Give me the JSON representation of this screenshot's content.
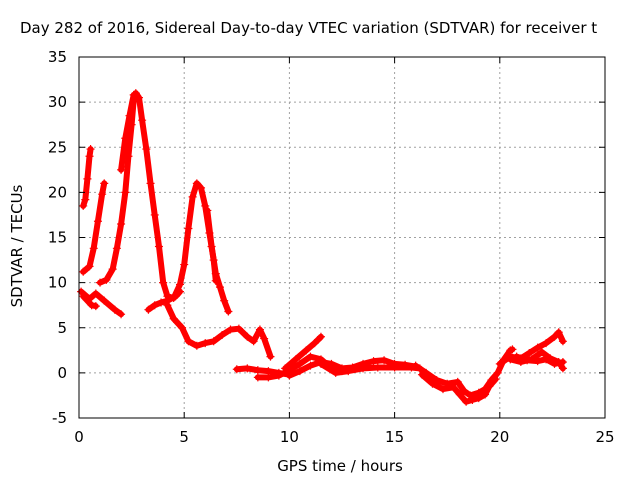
{
  "chart_data": {
    "type": "scatter",
    "title": "Day 282 of 2016, Sidereal Day-to-day VTEC variation (SDTVAR) for receiver t",
    "xlabel": "GPS time / hours",
    "ylabel": "SDTVAR / TECUs",
    "xlim": [
      0,
      25
    ],
    "ylim": [
      -5,
      35
    ],
    "xticks": [
      "0",
      "5",
      "10",
      "15",
      "20",
      "25"
    ],
    "yticks": [
      "-5",
      "0",
      "5",
      "10",
      "15",
      "20",
      "25",
      "30",
      "35"
    ],
    "grid": true,
    "color": "#ff0000",
    "series": [
      {
        "points": [
          [
            0.2,
            18.5
          ],
          [
            0.3,
            19.2
          ],
          [
            0.4,
            21.5
          ],
          [
            0.5,
            24.0
          ],
          [
            0.55,
            24.8
          ]
        ]
      },
      {
        "points": [
          [
            0.2,
            11.2
          ],
          [
            0.5,
            11.8
          ],
          [
            0.7,
            13.8
          ],
          [
            0.9,
            16.8
          ],
          [
            1.1,
            19.8
          ],
          [
            1.2,
            21.0
          ]
        ]
      },
      {
        "points": [
          [
            0.1,
            9.0
          ],
          [
            0.5,
            8.2
          ],
          [
            0.8,
            8.8
          ],
          [
            1.2,
            8.0
          ],
          [
            1.7,
            7.0
          ],
          [
            2.0,
            6.5
          ]
        ]
      },
      {
        "points": [
          [
            0.2,
            8.5
          ],
          [
            0.6,
            7.5
          ],
          [
            0.8,
            7.4
          ]
        ]
      },
      {
        "points": [
          [
            1.0,
            10.0
          ],
          [
            1.3,
            10.3
          ],
          [
            1.6,
            11.5
          ],
          [
            1.8,
            13.8
          ],
          [
            2.0,
            16.5
          ],
          [
            2.2,
            20.0
          ],
          [
            2.35,
            24.0
          ],
          [
            2.5,
            27.5
          ],
          [
            2.6,
            30.2
          ],
          [
            2.7,
            31.0
          ],
          [
            2.85,
            30.5
          ],
          [
            3.0,
            28.0
          ],
          [
            3.2,
            24.8
          ],
          [
            3.4,
            21.0
          ],
          [
            3.6,
            17.5
          ],
          [
            3.8,
            14.0
          ],
          [
            4.0,
            10.0
          ],
          [
            4.2,
            8.5
          ],
          [
            4.5,
            8.3
          ],
          [
            4.8,
            9.8
          ],
          [
            5.0,
            12.0
          ],
          [
            5.2,
            16.0
          ],
          [
            5.4,
            19.5
          ],
          [
            5.6,
            21.0
          ],
          [
            5.8,
            20.5
          ],
          [
            6.0,
            18.5
          ],
          [
            6.2,
            15.5
          ],
          [
            6.4,
            12.5
          ],
          [
            6.5,
            10.2
          ]
        ]
      },
      {
        "points": [
          [
            2.0,
            22.5
          ],
          [
            2.2,
            26.0
          ],
          [
            2.4,
            28.5
          ],
          [
            2.6,
            30.8
          ]
        ]
      },
      {
        "points": [
          [
            3.3,
            7.0
          ],
          [
            3.6,
            7.5
          ],
          [
            3.9,
            7.8
          ],
          [
            4.2,
            8.0
          ],
          [
            4.6,
            8.5
          ],
          [
            4.8,
            9.0
          ]
        ]
      },
      {
        "points": [
          [
            6.1,
            18.0
          ],
          [
            6.3,
            14.0
          ],
          [
            6.5,
            11.0
          ],
          [
            6.7,
            9.5
          ],
          [
            6.9,
            8.0
          ],
          [
            7.1,
            6.8
          ]
        ]
      },
      {
        "points": [
          [
            4.2,
            7.5
          ],
          [
            4.5,
            6.0
          ],
          [
            4.9,
            5.0
          ],
          [
            5.2,
            3.5
          ],
          [
            5.6,
            3.0
          ],
          [
            6.0,
            3.3
          ],
          [
            6.4,
            3.5
          ],
          [
            6.8,
            4.2
          ],
          [
            7.2,
            4.8
          ],
          [
            7.6,
            4.9
          ],
          [
            8.0,
            4.0
          ],
          [
            8.3,
            3.5
          ],
          [
            8.6,
            4.8
          ],
          [
            8.8,
            3.8
          ],
          [
            9.1,
            1.8
          ]
        ]
      },
      {
        "points": [
          [
            7.5,
            0.4
          ],
          [
            8.0,
            0.5
          ],
          [
            8.5,
            0.3
          ],
          [
            9.0,
            0.2
          ],
          [
            9.5,
            0.0
          ],
          [
            10.0,
            -0.2
          ]
        ]
      },
      {
        "points": [
          [
            8.5,
            -0.5
          ],
          [
            9.0,
            -0.5
          ],
          [
            9.5,
            -0.3
          ],
          [
            10.0,
            0.3
          ],
          [
            10.5,
            1.0
          ],
          [
            11.0,
            1.8
          ],
          [
            11.5,
            1.5
          ],
          [
            12.0,
            0.5
          ],
          [
            12.5,
            0.2
          ]
        ]
      },
      {
        "points": [
          [
            9.8,
            0.5
          ],
          [
            10.3,
            1.5
          ],
          [
            10.8,
            2.5
          ],
          [
            11.2,
            3.3
          ],
          [
            11.5,
            4.0
          ]
        ]
      },
      {
        "points": [
          [
            10.0,
            -0.3
          ],
          [
            10.5,
            0.2
          ],
          [
            11.0,
            0.8
          ],
          [
            11.5,
            1.2
          ],
          [
            12.0,
            1.0
          ],
          [
            12.5,
            0.5
          ],
          [
            13.0,
            0.6
          ],
          [
            13.5,
            1.0
          ],
          [
            14.0,
            1.3
          ],
          [
            14.5,
            1.4
          ],
          [
            15.0,
            1.0
          ],
          [
            15.5,
            0.9
          ],
          [
            16.0,
            0.7
          ]
        ]
      },
      {
        "points": [
          [
            11.5,
            1.0
          ],
          [
            12.2,
            0.0
          ],
          [
            12.8,
            0.2
          ],
          [
            13.5,
            0.5
          ],
          [
            14.2,
            0.6
          ],
          [
            15.0,
            0.6
          ],
          [
            15.8,
            0.6
          ],
          [
            16.2,
            0.5
          ]
        ]
      },
      {
        "points": [
          [
            16.0,
            0.8
          ],
          [
            16.5,
            0.0
          ],
          [
            17.0,
            -0.8
          ],
          [
            17.5,
            -1.2
          ],
          [
            18.0,
            -1.0
          ],
          [
            18.3,
            -2.0
          ],
          [
            18.6,
            -2.5
          ],
          [
            19.0,
            -2.2
          ],
          [
            19.3,
            -1.8
          ],
          [
            19.6,
            -0.8
          ],
          [
            19.9,
            0.0
          ],
          [
            20.2,
            1.5
          ],
          [
            20.5,
            2.5
          ],
          [
            20.6,
            2.6
          ]
        ]
      },
      {
        "points": [
          [
            16.3,
            -0.2
          ],
          [
            16.8,
            -1.2
          ],
          [
            17.3,
            -1.8
          ],
          [
            17.8,
            -1.6
          ],
          [
            18.1,
            -2.4
          ],
          [
            18.4,
            -3.2
          ],
          [
            18.7,
            -3.0
          ],
          [
            19.0,
            -2.8
          ],
          [
            19.3,
            -2.4
          ],
          [
            19.5,
            -1.5
          ],
          [
            19.8,
            -0.7
          ]
        ]
      },
      {
        "points": [
          [
            20.0,
            1.0
          ],
          [
            20.5,
            1.8
          ],
          [
            21.0,
            1.6
          ],
          [
            21.4,
            2.2
          ],
          [
            21.8,
            2.8
          ],
          [
            22.2,
            3.3
          ],
          [
            22.6,
            4.0
          ],
          [
            22.8,
            4.5
          ],
          [
            23.0,
            3.5
          ]
        ]
      },
      {
        "points": [
          [
            20.5,
            1.5
          ],
          [
            21.0,
            1.2
          ],
          [
            21.5,
            1.5
          ],
          [
            22.0,
            2.3
          ],
          [
            22.4,
            1.6
          ],
          [
            22.8,
            1.2
          ],
          [
            23.0,
            0.5
          ]
        ]
      },
      {
        "points": [
          [
            20.8,
            1.8
          ],
          [
            21.3,
            1.4
          ],
          [
            21.8,
            1.3
          ],
          [
            22.2,
            1.5
          ],
          [
            22.6,
            1.0
          ],
          [
            23.0,
            1.2
          ]
        ]
      }
    ]
  }
}
